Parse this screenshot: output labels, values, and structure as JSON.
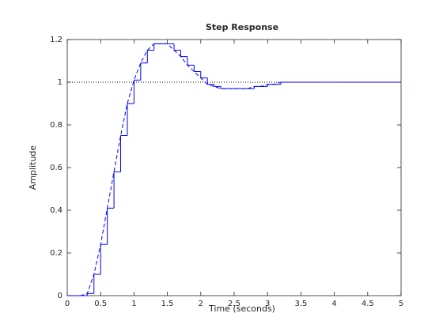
{
  "chart_data": {
    "type": "line",
    "title": "Step Response",
    "x_label": "Time (seconds)",
    "y_label": "Amplitude",
    "x": [
      0,
      0.1,
      0.2,
      0.3,
      0.4,
      0.5,
      0.6,
      0.7,
      0.8,
      0.9,
      1,
      1.1,
      1.2,
      1.3,
      1.4,
      1.5,
      1.6,
      1.7,
      1.8,
      1.9,
      2,
      2.1,
      2.2,
      2.3,
      2.4,
      2.5,
      2.6,
      2.7,
      2.8,
      2.9,
      3,
      3.1,
      3.2,
      3.3,
      3.4,
      3.5,
      3.6,
      3.7,
      3.8,
      3.9,
      4,
      4.1,
      4.2,
      4.3,
      4.4,
      4.5,
      4.6,
      4.7,
      4.8,
      4.9,
      5
    ],
    "series": [
      {
        "color": "#0000ff",
        "style": "step",
        "values": [
          0,
          0,
          0,
          0.01,
          0.1,
          0.24,
          0.41,
          0.58,
          0.75,
          0.9,
          1.01,
          1.09,
          1.15,
          1.18,
          1.18,
          1.18,
          1.15,
          1.12,
          1.08,
          1.05,
          1.02,
          0.99,
          0.98,
          0.97,
          0.97,
          0.97,
          0.97,
          0.97,
          0.98,
          0.98,
          0.99,
          0.99,
          1,
          1,
          1,
          1,
          1,
          1,
          1,
          1,
          1,
          1,
          1,
          1,
          1,
          1,
          1,
          1,
          1,
          1,
          1
        ]
      },
      {
        "color": "#0000ff",
        "style": "dashed",
        "values": [
          0,
          0,
          0,
          0.01,
          0.1,
          0.24,
          0.41,
          0.58,
          0.75,
          0.9,
          1.01,
          1.09,
          1.15,
          1.18,
          1.18,
          1.18,
          1.15,
          1.12,
          1.08,
          1.05,
          1.02,
          0.99,
          0.98,
          0.97,
          0.97,
          0.97,
          0.97,
          0.97,
          0.98,
          0.98,
          0.99,
          0.99,
          1,
          1,
          1,
          1,
          1,
          1,
          1,
          1,
          1,
          1,
          1,
          1,
          1,
          1,
          1,
          1,
          1,
          1,
          1
        ]
      }
    ],
    "reference_line": 1,
    "xlim": [
      0,
      5
    ],
    "xticks": [
      0,
      0.5,
      1,
      1.5,
      2,
      2.5,
      3,
      3.5,
      4,
      4.5,
      5
    ],
    "ylim": [
      0,
      1.2
    ],
    "yticks": [
      0,
      0.2,
      0.4,
      0.6,
      0.8,
      1,
      1.2
    ],
    "grid": false
  }
}
